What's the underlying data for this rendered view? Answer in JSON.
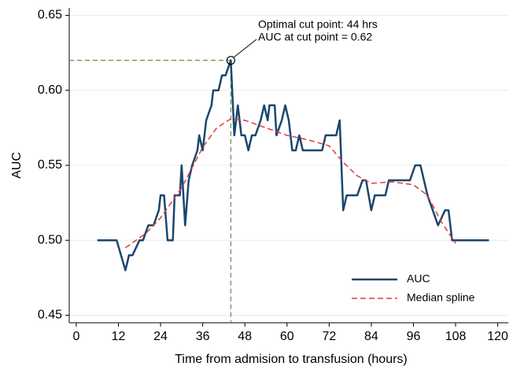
{
  "chart_data": {
    "type": "line",
    "x_label": "Time from admision to transfusion (hours)",
    "y_label": "AUC",
    "annotations": [
      "Optimal cut point: 44 hrs",
      "AUC at cut point = 0.62"
    ],
    "cut_point": {
      "x": 44,
      "y": 0.62,
      "color": "#3f7f2a"
    },
    "xlim": [
      -2,
      123
    ],
    "ylim": [
      0.445,
      0.655
    ],
    "xticks": [
      0,
      12,
      24,
      36,
      48,
      60,
      72,
      84,
      96,
      108,
      120
    ],
    "yticks": [
      0.45,
      {
        "value": 0.5,
        "label": "0.50"
      },
      0.55,
      {
        "value": 0.6,
        "label": "0.60"
      },
      0.65
    ],
    "grid": true,
    "legend": "lower right",
    "series": [
      {
        "name": "AUC",
        "color": "#1a476f",
        "dashed": false,
        "x": [
          6,
          11.5,
          14,
          15,
          16,
          18,
          19,
          20.5,
          22,
          23.5,
          24,
          25,
          26,
          27.5,
          28,
          29.5,
          30,
          31,
          32,
          33,
          34.5,
          35,
          36,
          37,
          38.5,
          39,
          40.5,
          41.5,
          42.5,
          44,
          45,
          46,
          47,
          48,
          49,
          50,
          51,
          52.5,
          53.5,
          54.5,
          55,
          56.5,
          57,
          58.5,
          59.5,
          60.5,
          61.5,
          62.5,
          63.5,
          64.5,
          66,
          70,
          71,
          74,
          75,
          76,
          77,
          80,
          81.5,
          82.5,
          84,
          85,
          88,
          89,
          95,
          96.5,
          98,
          100,
          103,
          105,
          106,
          107,
          117.5
        ],
        "values": [
          0.5,
          0.5,
          0.48,
          0.49,
          0.49,
          0.5,
          0.5,
          0.51,
          0.51,
          0.52,
          0.53,
          0.53,
          0.5,
          0.5,
          0.53,
          0.53,
          0.55,
          0.51,
          0.54,
          0.55,
          0.56,
          0.57,
          0.56,
          0.58,
          0.59,
          0.6,
          0.6,
          0.61,
          0.61,
          0.62,
          0.57,
          0.59,
          0.57,
          0.57,
          0.56,
          0.57,
          0.57,
          0.58,
          0.59,
          0.58,
          0.59,
          0.59,
          0.57,
          0.58,
          0.59,
          0.58,
          0.56,
          0.56,
          0.57,
          0.56,
          0.56,
          0.56,
          0.57,
          0.57,
          0.58,
          0.52,
          0.53,
          0.53,
          0.54,
          0.54,
          0.52,
          0.53,
          0.53,
          0.54,
          0.54,
          0.55,
          0.55,
          0.53,
          0.51,
          0.52,
          0.52,
          0.5,
          0.5
        ]
      },
      {
        "name": "Median spline",
        "color": "#e03c3c",
        "dashed": true,
        "x": [
          14,
          20,
          24,
          30,
          36,
          40,
          44,
          48,
          54,
          60,
          66,
          72,
          76,
          80,
          84,
          90,
          96,
          100,
          104,
          108
        ],
        "values": [
          0.495,
          0.505,
          0.515,
          0.535,
          0.562,
          0.575,
          0.581,
          0.58,
          0.575,
          0.57,
          0.567,
          0.563,
          0.552,
          0.543,
          0.538,
          0.539,
          0.537,
          0.53,
          0.512,
          0.498
        ]
      }
    ]
  }
}
